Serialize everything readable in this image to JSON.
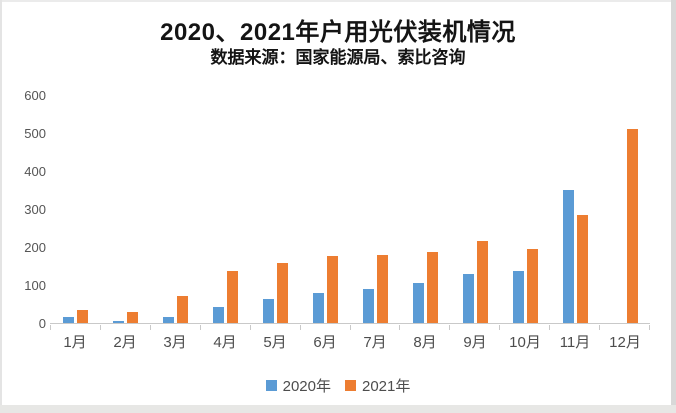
{
  "header": {
    "title": "2020、2021年户用光伏装机情况",
    "subtitle": "数据来源：国家能源局、索比咨询"
  },
  "chart_data": {
    "type": "bar",
    "title": "2020、2021年户用光伏装机情况",
    "subtitle": "数据来源：国家能源局、索比咨询",
    "categories": [
      "1月",
      "2月",
      "3月",
      "4月",
      "5月",
      "6月",
      "7月",
      "8月",
      "9月",
      "10月",
      "11月",
      "12月"
    ],
    "series": [
      {
        "name": "2020年",
        "color": "#5B9BD5",
        "values": [
          15,
          5,
          15,
          42,
          63,
          78,
          90,
          104,
          130,
          137,
          350,
          0
        ]
      },
      {
        "name": "2021年",
        "color": "#ED7D31",
        "values": [
          33,
          30,
          70,
          136,
          158,
          176,
          179,
          188,
          216,
          195,
          285,
          510
        ]
      }
    ],
    "ylim": [
      0,
      600
    ],
    "yticks": [
      0,
      100,
      200,
      300,
      400,
      500,
      600
    ],
    "grid": false,
    "legend_position": "bottom"
  },
  "colors": {
    "series_2020": "#5B9BD5",
    "series_2021": "#ED7D31",
    "axis_text": "#4d4d4d",
    "axis_line": "#c9c9c9",
    "background": "#ffffff"
  }
}
